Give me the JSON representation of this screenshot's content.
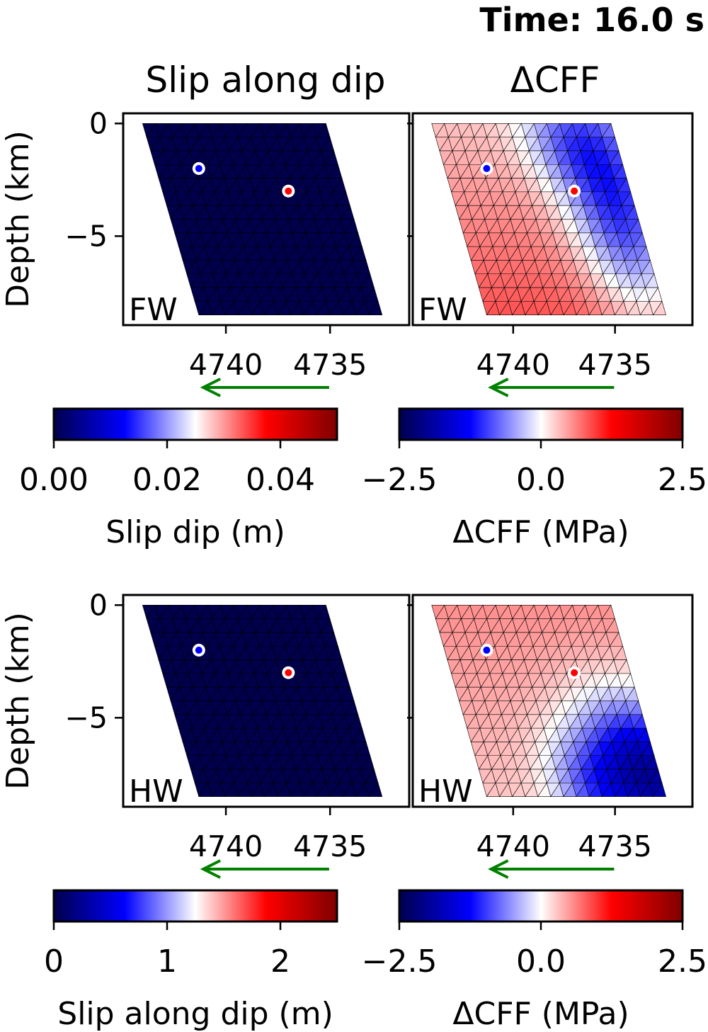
{
  "figure": {
    "time_label": "Time: 16.0 s",
    "column_titles": [
      "Slip along dip",
      "ΔCFF"
    ]
  },
  "colors": {
    "colormap": "seismic",
    "background": "#ffffff",
    "mesh_edge": "#000000",
    "arrow": "#008000",
    "marker_blue": "#0000ff",
    "marker_red": "#ff0000"
  },
  "chart_data": [
    {
      "type": "heatmap",
      "panel": "slip-fw",
      "wall_label": "FW",
      "ylabel": "Depth (km)",
      "yticks": [
        0,
        -5
      ],
      "xticks": [
        4740,
        4735
      ],
      "fault_outline": [
        [
          4744.0,
          0.0
        ],
        [
          4735.2,
          0.0
        ],
        [
          4732.5,
          -8.5
        ],
        [
          4741.3,
          -8.5
        ]
      ],
      "markers": [
        {
          "x": 4741.3,
          "y": -2.0,
          "color": "blue"
        },
        {
          "x": 4737.0,
          "y": -3.0,
          "color": "red"
        }
      ],
      "field": "uniform",
      "field_value": 0.0,
      "arrow_direction": "left",
      "colorbar": {
        "label": "Slip dip (m)",
        "range": [
          0.0,
          0.05
        ],
        "ticks": [
          "0.00",
          "0.02",
          "0.04"
        ]
      }
    },
    {
      "type": "heatmap",
      "panel": "cff-fw",
      "wall_label": "FW",
      "xticks": [
        4740,
        4735
      ],
      "fault_outline": [
        [
          4744.0,
          0.0
        ],
        [
          4735.2,
          0.0
        ],
        [
          4732.5,
          -8.5
        ],
        [
          4741.3,
          -8.5
        ]
      ],
      "markers": [
        {
          "x": 4741.3,
          "y": -2.0,
          "color": "blue"
        },
        {
          "x": 4737.0,
          "y": -3.0,
          "color": "red"
        }
      ],
      "field": "cff_fw",
      "arrow_direction": "left",
      "colorbar": {
        "label": "ΔCFF (MPa)",
        "range": [
          -2.5,
          2.5
        ],
        "ticks": [
          "−2.5",
          "0.0",
          "2.5"
        ]
      }
    },
    {
      "type": "heatmap",
      "panel": "slip-hw",
      "wall_label": "HW",
      "ylabel": "Depth (km)",
      "yticks": [
        0,
        -5
      ],
      "xticks": [
        4740,
        4735
      ],
      "fault_outline": [
        [
          4744.0,
          0.0
        ],
        [
          4735.2,
          0.0
        ],
        [
          4732.5,
          -8.5
        ],
        [
          4741.3,
          -8.5
        ]
      ],
      "markers": [
        {
          "x": 4741.3,
          "y": -2.0,
          "color": "blue"
        },
        {
          "x": 4737.0,
          "y": -3.0,
          "color": "red"
        }
      ],
      "field": "uniform",
      "field_value": 0.0,
      "arrow_direction": "left",
      "colorbar": {
        "label": "Slip along dip (m)",
        "range": [
          0,
          2.5
        ],
        "ticks": [
          "0",
          "1",
          "2"
        ]
      }
    },
    {
      "type": "heatmap",
      "panel": "cff-hw",
      "wall_label": "HW",
      "xticks": [
        4740,
        4735
      ],
      "fault_outline": [
        [
          4744.0,
          0.0
        ],
        [
          4735.2,
          0.0
        ],
        [
          4732.5,
          -8.5
        ],
        [
          4741.3,
          -8.5
        ]
      ],
      "markers": [
        {
          "x": 4741.3,
          "y": -2.0,
          "color": "blue"
        },
        {
          "x": 4737.0,
          "y": -3.0,
          "color": "red"
        }
      ],
      "field": "cff_hw",
      "arrow_direction": "left",
      "colorbar": {
        "label": "ΔCFF (MPa)",
        "range": [
          -2.5,
          2.5
        ],
        "ticks": [
          "−2.5",
          "0.0",
          "2.5"
        ]
      }
    }
  ]
}
